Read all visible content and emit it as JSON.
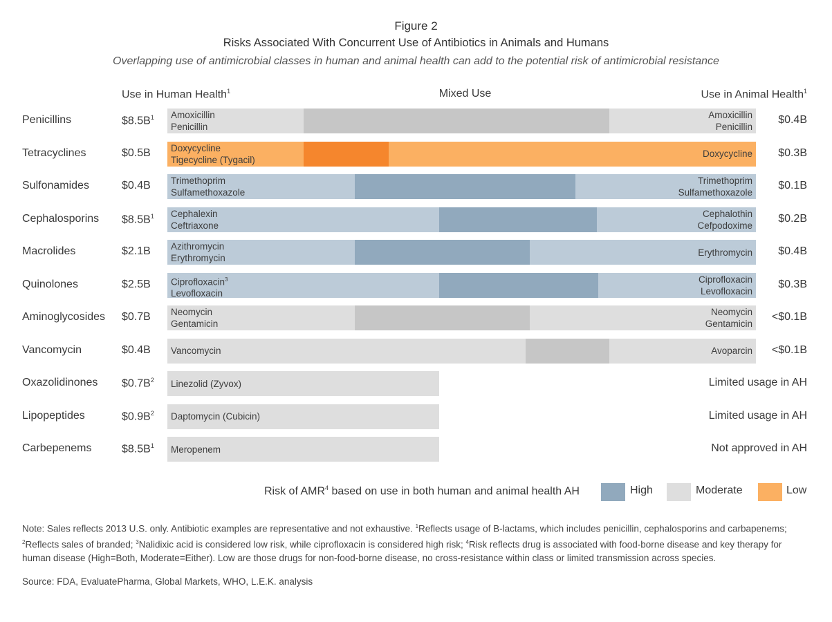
{
  "figure_label": "Figure 2",
  "chart_data": {
    "type": "table",
    "title": "Risks Associated With Concurrent Use of Antibiotics in Animals and Humans",
    "subtitle": "Overlapping use of antimicrobial classes in human and animal health can add to the potential risk of antimicrobial resistance",
    "columns": {
      "human": "Use in Human Health",
      "human_sup": "1",
      "mixed": "Mixed Use",
      "animal": "Use in Animal Health",
      "animal_sup": "1"
    },
    "colors": {
      "high": "#91a9bd",
      "high_light": "#bccbd8",
      "moderate": "#c6c6c6",
      "moderate_light": "#dedede",
      "low": "#f5862d",
      "low_light": "#fbb062"
    },
    "rows": [
      {
        "name": "Penicillins",
        "human_value": "$8.5B",
        "human_sup": "1",
        "animal_value": "$0.4B",
        "animal_sup": "",
        "risk": "moderate",
        "human_drugs": [
          "Amoxicillin",
          "Penicillin"
        ],
        "human_drug_sup": [
          "",
          ""
        ],
        "animal_drugs": [
          "Amoxicillin",
          "Penicillin"
        ]
      },
      {
        "name": "Tetracyclines",
        "human_value": "$0.5B",
        "human_sup": "",
        "animal_value": "$0.3B",
        "animal_sup": "",
        "risk": "low",
        "human_drugs": [
          "Doxycycline",
          "Tigecycline (Tygacil)"
        ],
        "human_drug_sup": [
          "",
          ""
        ],
        "animal_drugs": [
          "Doxycycline"
        ]
      },
      {
        "name": "Sulfonamides",
        "human_value": "$0.4B",
        "human_sup": "",
        "animal_value": "$0.1B",
        "animal_sup": "",
        "risk": "high",
        "human_drugs": [
          "Trimethoprim",
          "Sulfamethoxazole"
        ],
        "human_drug_sup": [
          "",
          ""
        ],
        "animal_drugs": [
          "Trimethoprim",
          "Sulfamethoxazole"
        ]
      },
      {
        "name": "Cephalosporins",
        "human_value": "$8.5B",
        "human_sup": "1",
        "animal_value": "$0.2B",
        "animal_sup": "",
        "risk": "high",
        "human_drugs": [
          "Cephalexin",
          "Ceftriaxone"
        ],
        "human_drug_sup": [
          "",
          ""
        ],
        "animal_drugs": [
          "Cephalothin",
          "Cefpodoxime"
        ]
      },
      {
        "name": "Macrolides",
        "human_value": "$2.1B",
        "human_sup": "",
        "animal_value": "$0.4B",
        "animal_sup": "",
        "risk": "high",
        "human_drugs": [
          "Azithromycin",
          "Erythromycin"
        ],
        "human_drug_sup": [
          "",
          ""
        ],
        "animal_drugs": [
          "Erythromycin"
        ]
      },
      {
        "name": "Quinolones",
        "human_value": "$2.5B",
        "human_sup": "",
        "animal_value": "$0.3B",
        "animal_sup": "",
        "risk": "high",
        "human_drugs": [
          "Ciprofloxacin",
          "Levofloxacin"
        ],
        "human_drug_sup": [
          "3",
          ""
        ],
        "animal_drugs": [
          "Ciprofloxacin",
          "Levofloxacin"
        ]
      },
      {
        "name": "Aminoglycosides",
        "human_value": "$0.7B",
        "human_sup": "",
        "animal_value": "<$0.1B",
        "animal_sup": "",
        "risk": "moderate",
        "human_drugs": [
          "Neomycin",
          "Gentamicin"
        ],
        "human_drug_sup": [
          "",
          ""
        ],
        "animal_drugs": [
          "Neomycin",
          "Gentamicin"
        ]
      },
      {
        "name": "Vancomycin",
        "human_value": "$0.4B",
        "human_sup": "",
        "animal_value": "<$0.1B",
        "animal_sup": "",
        "risk": "moderate",
        "human_drugs": [
          "Vancomycin"
        ],
        "human_drug_sup": [
          ""
        ],
        "animal_drugs": [
          "Avoparcin"
        ]
      },
      {
        "name": "Oxazolidinones",
        "human_value": "$0.7B",
        "human_sup": "2",
        "animal_value": "Limited usage in AH",
        "animal_sup": "",
        "risk": "moderate",
        "human_drugs": [
          "Linezolid (Zyvox)"
        ],
        "human_drug_sup": [
          ""
        ],
        "animal_drugs": []
      },
      {
        "name": "Lipopeptides",
        "human_value": "$0.9B",
        "human_sup": "2",
        "animal_value": "Limited usage in AH",
        "animal_sup": "",
        "risk": "moderate",
        "human_drugs": [
          "Daptomycin (Cubicin)"
        ],
        "human_drug_sup": [
          ""
        ],
        "animal_drugs": []
      },
      {
        "name": "Carbepenems",
        "human_value": "$8.5B",
        "human_sup": "1",
        "animal_value": "Not approved in AH",
        "animal_sup": "",
        "risk": "moderate",
        "human_drugs": [
          "Meropenem"
        ],
        "human_drug_sup": [
          ""
        ],
        "animal_drugs": []
      }
    ],
    "legend": {
      "title": "Risk of AMR",
      "title_sup": "4",
      "title_rest": " based on use in both human and animal health AH",
      "placement": "bottom-right",
      "items": [
        {
          "label": "High",
          "color": "#91a9bd"
        },
        {
          "label": "Moderate",
          "color": "#dedede"
        },
        {
          "label": "Low",
          "color": "#fbb062"
        }
      ]
    }
  },
  "notes": {
    "segments": [
      {
        "t": "Note: Sales reflects 2013 U.S. only. Antibiotic examples are representative and not exhaustive. ",
        "sup": false
      },
      {
        "t": "1",
        "sup": true
      },
      {
        "t": "Reflects usage of B-lactams, which includes penicillin, cephalosporins and carbapenems; ",
        "sup": false
      },
      {
        "t": "2",
        "sup": true
      },
      {
        "t": "Reflects sales of branded; ",
        "sup": false
      },
      {
        "t": "3",
        "sup": true
      },
      {
        "t": "Nalidixic acid is considered low risk, while ciprofloxacin is considered high risk; ",
        "sup": false
      },
      {
        "t": "4",
        "sup": true
      },
      {
        "t": "Risk reflects drug is associated with food-borne disease and key therapy for human disease (High=Both, Moderate=Either). Low are those drugs for non-food-borne disease, no cross-resistance within class or limited transmission across species.",
        "sup": false
      }
    ],
    "source": "Source: FDA, EvaluatePharma, Global Markets, WHO, L.E.K. analysis"
  }
}
